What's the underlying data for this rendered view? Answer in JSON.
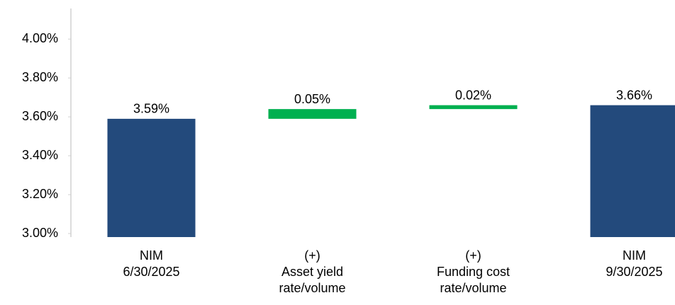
{
  "chart_data": {
    "type": "waterfall",
    "categories": [
      [
        "NIM",
        "6/30/2025"
      ],
      [
        "(+)",
        "Asset yield",
        "rate/volume"
      ],
      [
        "(+)",
        "Funding cost",
        "rate/volume"
      ],
      [
        "NIM",
        "9/30/2025"
      ]
    ],
    "values": [
      3.59,
      0.05,
      0.02,
      3.66
    ],
    "value_labels": [
      "3.59%",
      "0.05%",
      "0.02%",
      "3.66%"
    ],
    "measure": [
      "total",
      "relative",
      "relative",
      "total"
    ],
    "colors": {
      "total": "#234a7c",
      "relative": "#00b050"
    },
    "ylim": [
      3.0,
      4.15
    ],
    "yticks": [
      {
        "value": 3.0,
        "label": "3.00%"
      },
      {
        "value": 3.2,
        "label": "3.20%"
      },
      {
        "value": 3.4,
        "label": "3.40%"
      },
      {
        "value": 3.6,
        "label": "3.60%"
      },
      {
        "value": 3.8,
        "label": "3.80%"
      },
      {
        "value": 4.0,
        "label": "4.00%"
      }
    ]
  }
}
